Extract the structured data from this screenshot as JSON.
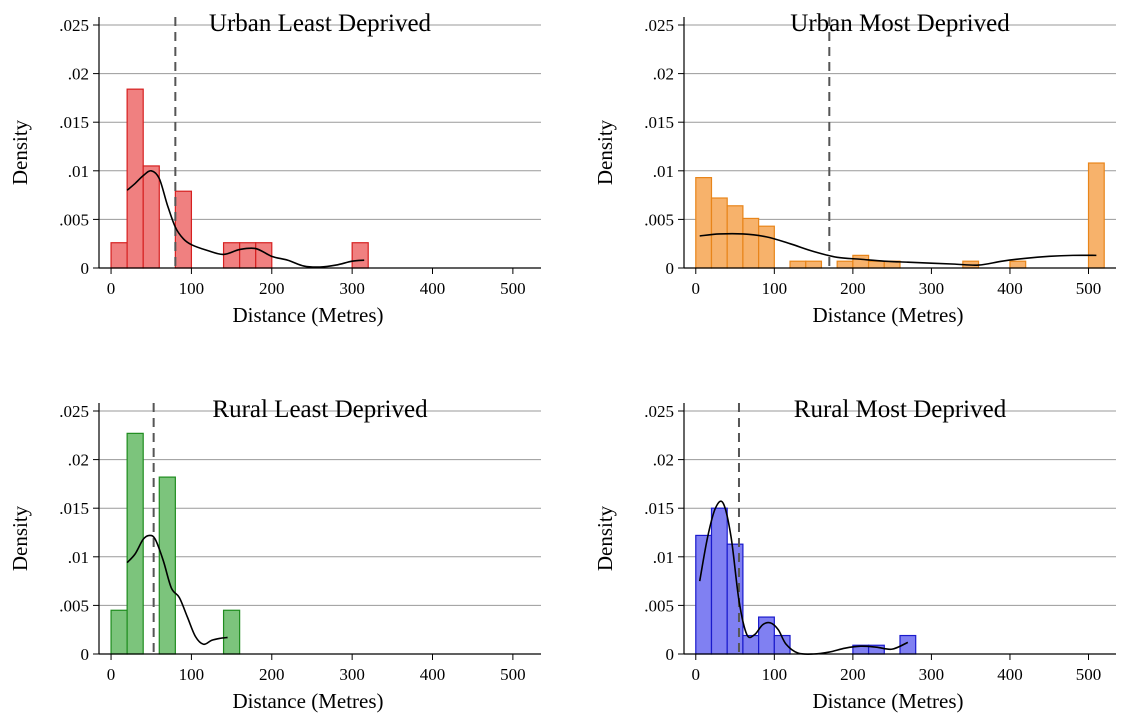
{
  "chart_data": [
    {
      "type": "bar",
      "title": "Urban Least Deprived",
      "xlabel": "Distance (Metres)",
      "ylabel": "Density",
      "xlim": [
        -15,
        535
      ],
      "ylim": [
        0,
        0.0265
      ],
      "xticks": [
        0,
        100,
        200,
        300,
        400,
        500
      ],
      "xtick_labels": [
        "0",
        "100",
        "200",
        "300",
        "400",
        "500"
      ],
      "yticks": [
        0,
        0.005,
        0.01,
        0.015,
        0.02,
        0.025
      ],
      "ytick_labels": [
        "0",
        ".005",
        ".01",
        ".015",
        ".02",
        ".025"
      ],
      "grid": true,
      "colors": {
        "fill": "#f08080",
        "edge": "#d62020"
      },
      "bin_width": 20,
      "bins": [
        {
          "x0": 0,
          "density": 0.0026
        },
        {
          "x0": 20,
          "density": 0.0184
        },
        {
          "x0": 40,
          "density": 0.0105
        },
        {
          "x0": 80,
          "density": 0.0079
        },
        {
          "x0": 140,
          "density": 0.0026
        },
        {
          "x0": 160,
          "density": 0.0026
        },
        {
          "x0": 180,
          "density": 0.0026
        },
        {
          "x0": 300,
          "density": 0.0026
        }
      ],
      "median": 80,
      "kde": [
        [
          20,
          0.008
        ],
        [
          30,
          0.0087
        ],
        [
          40,
          0.0095
        ],
        [
          50,
          0.01
        ],
        [
          60,
          0.0092
        ],
        [
          70,
          0.0065
        ],
        [
          80,
          0.0042
        ],
        [
          90,
          0.003
        ],
        [
          100,
          0.0024
        ],
        [
          120,
          0.0018
        ],
        [
          140,
          0.0014
        ],
        [
          160,
          0.0019
        ],
        [
          180,
          0.002
        ],
        [
          200,
          0.0012
        ],
        [
          220,
          0.0008
        ],
        [
          240,
          0.0002
        ],
        [
          260,
          0.0001
        ],
        [
          280,
          0.0003
        ],
        [
          300,
          0.0007
        ],
        [
          315,
          0.0008
        ]
      ]
    },
    {
      "type": "bar",
      "title": "Urban Most Deprived",
      "xlabel": "Distance (Metres)",
      "ylabel": "Density",
      "xlim": [
        -15,
        535
      ],
      "ylim": [
        0,
        0.0265
      ],
      "xticks": [
        0,
        100,
        200,
        300,
        400,
        500
      ],
      "xtick_labels": [
        "0",
        "100",
        "200",
        "300",
        "400",
        "500"
      ],
      "yticks": [
        0,
        0.005,
        0.01,
        0.015,
        0.02,
        0.025
      ],
      "ytick_labels": [
        "0",
        ".005",
        ".01",
        ".015",
        ".02",
        ".025"
      ],
      "grid": true,
      "colors": {
        "fill": "#f7b26b",
        "edge": "#e8851a"
      },
      "bin_width": 20,
      "bins": [
        {
          "x0": 0,
          "density": 0.0093
        },
        {
          "x0": 20,
          "density": 0.0072
        },
        {
          "x0": 40,
          "density": 0.0064
        },
        {
          "x0": 60,
          "density": 0.0051
        },
        {
          "x0": 80,
          "density": 0.0043
        },
        {
          "x0": 120,
          "density": 0.0007
        },
        {
          "x0": 140,
          "density": 0.0007
        },
        {
          "x0": 180,
          "density": 0.0007
        },
        {
          "x0": 200,
          "density": 0.0013
        },
        {
          "x0": 220,
          "density": 0.0007
        },
        {
          "x0": 240,
          "density": 0.0007
        },
        {
          "x0": 340,
          "density": 0.0007
        },
        {
          "x0": 400,
          "density": 0.0007
        },
        {
          "x0": 500,
          "density": 0.0108
        }
      ],
      "median": 170,
      "kde": [
        [
          5,
          0.0033
        ],
        [
          30,
          0.0035
        ],
        [
          60,
          0.0035
        ],
        [
          90,
          0.0032
        ],
        [
          120,
          0.0025
        ],
        [
          150,
          0.0017
        ],
        [
          180,
          0.0011
        ],
        [
          210,
          0.0009
        ],
        [
          240,
          0.0007
        ],
        [
          270,
          0.0006
        ],
        [
          300,
          0.0005
        ],
        [
          330,
          0.0004
        ],
        [
          360,
          0.0003
        ],
        [
          390,
          0.0007
        ],
        [
          420,
          0.001
        ],
        [
          450,
          0.0012
        ],
        [
          480,
          0.0013
        ],
        [
          510,
          0.0013
        ]
      ]
    },
    {
      "type": "bar",
      "title": "Rural Least Deprived",
      "xlabel": "Distance (Metres)",
      "ylabel": "Density",
      "xlim": [
        -15,
        535
      ],
      "ylim": [
        0,
        0.0265
      ],
      "xticks": [
        0,
        100,
        200,
        300,
        400,
        500
      ],
      "xtick_labels": [
        "0",
        "100",
        "200",
        "300",
        "400",
        "500"
      ],
      "yticks": [
        0,
        0.005,
        0.01,
        0.015,
        0.02,
        0.025
      ],
      "ytick_labels": [
        "0",
        ".005",
        ".01",
        ".015",
        ".02",
        ".025"
      ],
      "grid": true,
      "colors": {
        "fill": "#7cc47c",
        "edge": "#1e8c1e"
      },
      "bin_width": 20,
      "bins": [
        {
          "x0": 0,
          "density": 0.0045
        },
        {
          "x0": 20,
          "density": 0.0227
        },
        {
          "x0": 60,
          "density": 0.0182
        },
        {
          "x0": 140,
          "density": 0.0045
        }
      ],
      "median": 53,
      "kde": [
        [
          20,
          0.0094
        ],
        [
          30,
          0.0103
        ],
        [
          40,
          0.0118
        ],
        [
          48,
          0.0122
        ],
        [
          55,
          0.0118
        ],
        [
          65,
          0.0096
        ],
        [
          75,
          0.0068
        ],
        [
          85,
          0.0058
        ],
        [
          95,
          0.0038
        ],
        [
          105,
          0.0018
        ],
        [
          115,
          0.001
        ],
        [
          125,
          0.0014
        ],
        [
          135,
          0.0016
        ],
        [
          145,
          0.0017
        ]
      ]
    },
    {
      "type": "bar",
      "title": "Rural Most Deprived",
      "xlabel": "Distance (Metres)",
      "ylabel": "Density",
      "xlim": [
        -15,
        535
      ],
      "ylim": [
        0,
        0.0265
      ],
      "xticks": [
        0,
        100,
        200,
        300,
        400,
        500
      ],
      "xtick_labels": [
        "0",
        "100",
        "200",
        "300",
        "400",
        "500"
      ],
      "yticks": [
        0,
        0.005,
        0.01,
        0.015,
        0.02,
        0.025
      ],
      "ytick_labels": [
        "0",
        ".005",
        ".01",
        ".015",
        ".02",
        ".025"
      ],
      "grid": true,
      "colors": {
        "fill": "#8080f2",
        "edge": "#1a1acc"
      },
      "bin_width": 20,
      "bins": [
        {
          "x0": 0,
          "density": 0.0122
        },
        {
          "x0": 20,
          "density": 0.015
        },
        {
          "x0": 40,
          "density": 0.0113
        },
        {
          "x0": 60,
          "density": 0.0019
        },
        {
          "x0": 80,
          "density": 0.0038
        },
        {
          "x0": 100,
          "density": 0.0019
        },
        {
          "x0": 200,
          "density": 0.0009
        },
        {
          "x0": 220,
          "density": 0.0009
        },
        {
          "x0": 260,
          "density": 0.0019
        }
      ],
      "median": 55,
      "kde": [
        [
          5,
          0.0075
        ],
        [
          15,
          0.012
        ],
        [
          25,
          0.015
        ],
        [
          35,
          0.0155
        ],
        [
          45,
          0.012
        ],
        [
          55,
          0.0055
        ],
        [
          65,
          0.002
        ],
        [
          75,
          0.002
        ],
        [
          85,
          0.003
        ],
        [
          95,
          0.0032
        ],
        [
          105,
          0.0025
        ],
        [
          115,
          0.001
        ],
        [
          130,
          0.0001
        ],
        [
          150,
          0.0
        ],
        [
          170,
          0.0002
        ],
        [
          190,
          0.0006
        ],
        [
          210,
          0.0008
        ],
        [
          230,
          0.0007
        ],
        [
          250,
          0.0005
        ],
        [
          270,
          0.0012
        ]
      ]
    }
  ]
}
